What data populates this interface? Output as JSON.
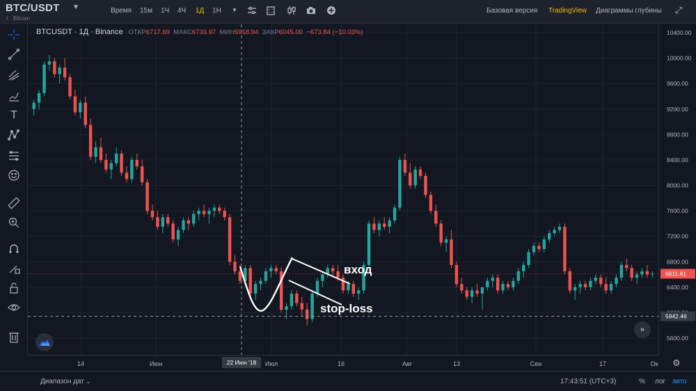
{
  "header": {
    "symbol": "BTC/USDT",
    "symbol_sub": "Bitcoin",
    "timeframes": [
      "Время",
      "15м",
      "1Ч",
      "4Ч",
      "1Д",
      "1Н"
    ],
    "active_timeframe": "1Д",
    "links": {
      "basic": "Базовая версия",
      "tradingview": "TradingView",
      "depth": "Диаграммы глубины"
    }
  },
  "legend": {
    "symbol": "BTCUSDT · 1Д · Binance",
    "open_label": "ОТКР",
    "open": "6717.69",
    "high_label": "МАКС",
    "high": "6733.97",
    "low_label": "МИН",
    "low": "5918.94",
    "close_label": "ЗАКР",
    "close": "6045.00",
    "change": "−673.84 (−10.03%)"
  },
  "price_axis": {
    "ticks": [
      "10400.00",
      "10000.00",
      "9600.00",
      "9200.00",
      "8800.00",
      "8400.00",
      "8000.00",
      "7600.00",
      "7200.00",
      "6800.00",
      "6400.00",
      "6000.00",
      "5600.00"
    ],
    "last_price": "6611.61",
    "crosshair_price": "5942.46"
  },
  "time_axis": {
    "ticks": [
      "14",
      "Июн",
      "Июл",
      "16",
      "Авг",
      "13",
      "Сен",
      "17",
      "Ок"
    ],
    "crosshair_label": "22 Июн '18"
  },
  "annotations": {
    "entry": "вход",
    "stop": "stop-loss"
  },
  "bottom": {
    "range": "Диапазон дат",
    "clock": "17:43:51 (UTC+3)",
    "pct": "%",
    "log": "лог",
    "auto": "авто"
  },
  "colors": {
    "up": "#26a69a",
    "down": "#ef5350",
    "bg": "#131722",
    "brand": "#f0b90b"
  },
  "chart_data": {
    "type": "candlestick",
    "title": "",
    "xlabel": "",
    "ylabel": "",
    "ylim": [
      5500,
      10500
    ],
    "candles": [
      [
        9200,
        9350,
        9100,
        9300
      ],
      [
        9300,
        9500,
        9200,
        9450
      ],
      [
        9450,
        9950,
        9400,
        9900
      ],
      [
        9900,
        10050,
        9800,
        9950
      ],
      [
        9950,
        10000,
        9700,
        9750
      ],
      [
        9750,
        9900,
        9600,
        9850
      ],
      [
        9850,
        10000,
        9650,
        9700
      ],
      [
        9700,
        9750,
        9350,
        9400
      ],
      [
        9400,
        9500,
        9100,
        9150
      ],
      [
        9150,
        9350,
        9050,
        9300
      ],
      [
        9300,
        9400,
        8900,
        8950
      ],
      [
        8950,
        9050,
        8400,
        8450
      ],
      [
        8450,
        8700,
        8350,
        8600
      ],
      [
        8600,
        8750,
        8350,
        8400
      ],
      [
        8400,
        8500,
        8200,
        8250
      ],
      [
        8250,
        8400,
        8100,
        8350
      ],
      [
        8350,
        8600,
        8300,
        8500
      ],
      [
        8500,
        8550,
        8150,
        8200
      ],
      [
        8200,
        8300,
        8050,
        8100
      ],
      [
        8100,
        8450,
        8050,
        8400
      ],
      [
        8400,
        8500,
        8250,
        8300
      ],
      [
        8300,
        8400,
        8000,
        8050
      ],
      [
        8050,
        8100,
        7550,
        7600
      ],
      [
        7600,
        7700,
        7450,
        7500
      ],
      [
        7500,
        7600,
        7300,
        7350
      ],
      [
        7350,
        7550,
        7250,
        7500
      ],
      [
        7500,
        7550,
        7350,
        7400
      ],
      [
        7400,
        7450,
        7100,
        7150
      ],
      [
        7150,
        7350,
        7050,
        7300
      ],
      [
        7300,
        7500,
        7250,
        7450
      ],
      [
        7450,
        7500,
        7300,
        7400
      ],
      [
        7400,
        7600,
        7350,
        7550
      ],
      [
        7550,
        7650,
        7450,
        7600
      ],
      [
        7600,
        7700,
        7500,
        7550
      ],
      [
        7550,
        7650,
        7400,
        7600
      ],
      [
        7600,
        7700,
        7500,
        7650
      ],
      [
        7650,
        7700,
        7550,
        7600
      ],
      [
        7600,
        7650,
        7450,
        7500
      ],
      [
        7500,
        7550,
        6750,
        6800
      ],
      [
        6800,
        6900,
        6600,
        6650
      ],
      [
        6650,
        6750,
        6450,
        6500
      ],
      [
        6500,
        6750,
        6450,
        6700
      ],
      [
        6700,
        6750,
        6250,
        6300
      ],
      [
        6300,
        6500,
        6200,
        6450
      ],
      [
        6450,
        6550,
        6350,
        6500
      ],
      [
        6500,
        6700,
        6450,
        6650
      ],
      [
        6650,
        6750,
        6550,
        6700
      ],
      [
        6700,
        6750,
        6600,
        6650
      ],
      [
        6650,
        6720,
        6000,
        6045
      ],
      [
        6045,
        6150,
        5900,
        6100
      ],
      [
        6100,
        6350,
        6050,
        6300
      ],
      [
        6300,
        6350,
        6100,
        6150
      ],
      [
        6150,
        6250,
        5950,
        6050
      ],
      [
        6050,
        6150,
        5800,
        5900
      ],
      [
        5900,
        6350,
        5850,
        6300
      ],
      [
        6300,
        6550,
        6250,
        6500
      ],
      [
        6500,
        6650,
        6400,
        6600
      ],
      [
        6600,
        6750,
        6550,
        6700
      ],
      [
        6700,
        6750,
        6550,
        6650
      ],
      [
        6650,
        6750,
        6500,
        6550
      ],
      [
        6550,
        6600,
        6300,
        6350
      ],
      [
        6350,
        6500,
        6300,
        6450
      ],
      [
        6450,
        6500,
        6250,
        6300
      ],
      [
        6300,
        6400,
        6200,
        6350
      ],
      [
        6350,
        6800,
        6300,
        6750
      ],
      [
        6750,
        7450,
        6700,
        7400
      ],
      [
        7400,
        7500,
        7250,
        7300
      ],
      [
        7300,
        7450,
        7200,
        7400
      ],
      [
        7400,
        7500,
        7300,
        7350
      ],
      [
        7350,
        7500,
        7250,
        7450
      ],
      [
        7450,
        7700,
        7400,
        7650
      ],
      [
        7650,
        8450,
        7600,
        8400
      ],
      [
        8400,
        8500,
        8150,
        8200
      ],
      [
        8200,
        8350,
        7950,
        8000
      ],
      [
        8000,
        8300,
        7950,
        8250
      ],
      [
        8250,
        8300,
        8100,
        8150
      ],
      [
        8150,
        8200,
        7800,
        7850
      ],
      [
        7850,
        7900,
        7550,
        7600
      ],
      [
        7600,
        7700,
        7350,
        7400
      ],
      [
        7400,
        7450,
        7050,
        7100
      ],
      [
        7100,
        7200,
        6950,
        7150
      ],
      [
        7150,
        7300,
        6700,
        6750
      ],
      [
        6750,
        6800,
        6400,
        6450
      ],
      [
        6450,
        6550,
        6300,
        6350
      ],
      [
        6350,
        6400,
        6200,
        6250
      ],
      [
        6250,
        6400,
        6150,
        6350
      ],
      [
        6350,
        6450,
        6250,
        6300
      ],
      [
        6300,
        6350,
        6050,
        6400
      ],
      [
        6400,
        6550,
        6350,
        6500
      ],
      [
        6500,
        6600,
        6400,
        6550
      ],
      [
        6550,
        6600,
        6300,
        6350
      ],
      [
        6350,
        6500,
        6300,
        6450
      ],
      [
        6450,
        6500,
        6350,
        6400
      ],
      [
        6400,
        6550,
        6350,
        6500
      ],
      [
        6500,
        6700,
        6450,
        6650
      ],
      [
        6650,
        6800,
        6550,
        6750
      ],
      [
        6750,
        7000,
        6700,
        6950
      ],
      [
        6950,
        7100,
        6900,
        7050
      ],
      [
        7050,
        7100,
        6950,
        7000
      ],
      [
        7000,
        7200,
        6950,
        7150
      ],
      [
        7150,
        7300,
        7100,
        7250
      ],
      [
        7250,
        7350,
        7200,
        7300
      ],
      [
        7300,
        7400,
        7250,
        7350
      ],
      [
        7350,
        7400,
        6600,
        6650
      ],
      [
        6650,
        6700,
        6300,
        6350
      ],
      [
        6350,
        6450,
        6200,
        6400
      ],
      [
        6400,
        6500,
        6300,
        6450
      ],
      [
        6450,
        6500,
        6350,
        6400
      ],
      [
        6400,
        6550,
        6350,
        6500
      ],
      [
        6500,
        6600,
        6450,
        6550
      ],
      [
        6550,
        6600,
        6400,
        6450
      ],
      [
        6450,
        6550,
        6300,
        6350
      ],
      [
        6350,
        6500,
        6300,
        6450
      ],
      [
        6450,
        6600,
        6400,
        6550
      ],
      [
        6550,
        6800,
        6500,
        6750
      ],
      [
        6750,
        6850,
        6650,
        6700
      ],
      [
        6700,
        6750,
        6500,
        6550
      ],
      [
        6550,
        6650,
        6450,
        6600
      ],
      [
        6600,
        6700,
        6550,
        6650
      ],
      [
        6650,
        6750,
        6550,
        6600
      ],
      [
        6600,
        6650,
        6550,
        6611.61
      ]
    ],
    "candle_fields": [
      "open",
      "high",
      "low",
      "close"
    ],
    "last_close": 6611.61
  }
}
